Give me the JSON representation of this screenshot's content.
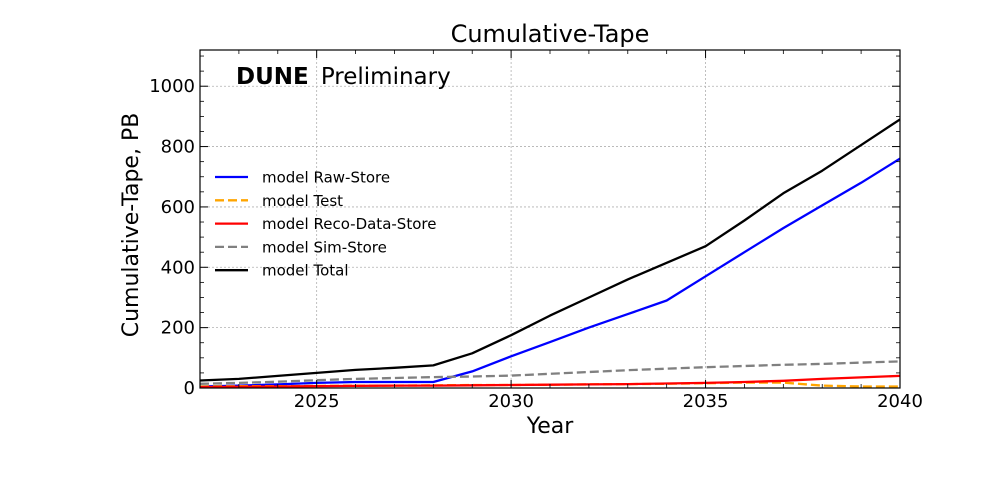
{
  "chart_data": {
    "type": "line",
    "title": "Cumulative-Tape",
    "xlabel": "Year",
    "ylabel": "Cumulative-Tape, PB",
    "annotation": {
      "brand": "DUNE",
      "text": "Preliminary"
    },
    "xlim": [
      2022,
      2040
    ],
    "ylim": [
      0,
      1120
    ],
    "xticks": [
      2025,
      2030,
      2035,
      2040
    ],
    "yticks": [
      0,
      200,
      400,
      600,
      800,
      1000
    ],
    "grid": true,
    "legend_position": "center-left",
    "series": [
      {
        "name": "model Raw-Store",
        "color": "#0000ff",
        "dash": "solid",
        "x": [
          2022,
          2023,
          2024,
          2025,
          2026,
          2027,
          2028,
          2029,
          2030,
          2031,
          2032,
          2033,
          2034,
          2035,
          2036,
          2037,
          2038,
          2039,
          2040
        ],
        "y": [
          5,
          8,
          12,
          17,
          20,
          20,
          20,
          55,
          105,
          152,
          200,
          245,
          290,
          370,
          450,
          530,
          605,
          680,
          760
        ]
      },
      {
        "name": "model Test",
        "color": "#ffa500",
        "dash": "dashed",
        "x": [
          2022,
          2023,
          2024,
          2025,
          2026,
          2027,
          2028,
          2029,
          2030,
          2031,
          2032,
          2033,
          2034,
          2035,
          2036,
          2037,
          2038,
          2039,
          2040
        ],
        "y": [
          5,
          6,
          6,
          7,
          8,
          8,
          9,
          10,
          10,
          11,
          12,
          13,
          14,
          16,
          18,
          18,
          8,
          5,
          5
        ]
      },
      {
        "name": "model Reco-Data-Store",
        "color": "#ff0000",
        "dash": "solid",
        "x": [
          2022,
          2023,
          2024,
          2025,
          2026,
          2027,
          2028,
          2029,
          2030,
          2031,
          2032,
          2033,
          2034,
          2035,
          2036,
          2037,
          2038,
          2039,
          2040
        ],
        "y": [
          3,
          4,
          5,
          6,
          7,
          8,
          8,
          9,
          10,
          11,
          12,
          13,
          15,
          17,
          20,
          24,
          30,
          35,
          40
        ]
      },
      {
        "name": "model Sim-Store",
        "color": "#808080",
        "dash": "dashed",
        "x": [
          2022,
          2023,
          2024,
          2025,
          2026,
          2027,
          2028,
          2029,
          2030,
          2031,
          2032,
          2033,
          2034,
          2035,
          2036,
          2037,
          2038,
          2039,
          2040
        ],
        "y": [
          14,
          17,
          21,
          26,
          30,
          33,
          36,
          38,
          41,
          47,
          53,
          59,
          64,
          69,
          73,
          77,
          80,
          84,
          88
        ]
      },
      {
        "name": "model Total",
        "color": "#000000",
        "dash": "solid",
        "x": [
          2022,
          2023,
          2024,
          2025,
          2026,
          2027,
          2028,
          2029,
          2030,
          2031,
          2032,
          2033,
          2034,
          2035,
          2036,
          2037,
          2038,
          2039,
          2040
        ],
        "y": [
          25,
          30,
          40,
          50,
          60,
          67,
          75,
          115,
          175,
          240,
          300,
          360,
          415,
          470,
          555,
          645,
          720,
          805,
          890
        ]
      }
    ]
  }
}
